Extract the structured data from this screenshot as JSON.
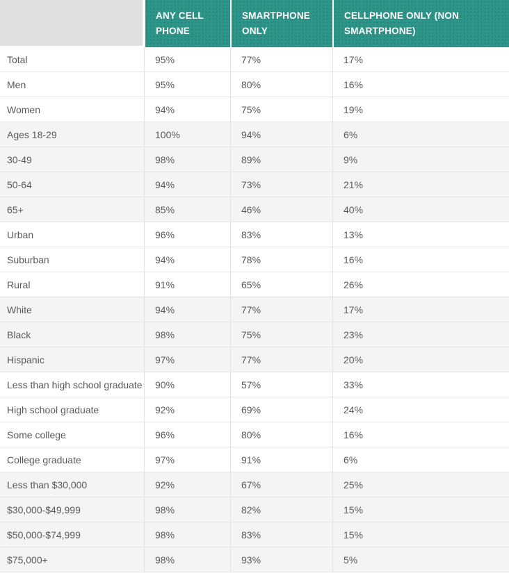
{
  "colors": {
    "header_teal": "#2E958A",
    "corner_gray": "#E0E0E0",
    "shaded_row": "#F4F4F4",
    "border": "#E2E2E2",
    "body_text": "#58595B",
    "header_text": "#FFFFFF"
  },
  "chart_data": {
    "type": "table",
    "columns": [
      "ANY CELL PHONE",
      "SMARTPHONE ONLY",
      "CELLPHONE ONLY (NON SMARTPHONE)"
    ],
    "groups": [
      {
        "shaded": false,
        "rows": [
          {
            "label": "Total",
            "values": [
              "95%",
              "77%",
              "17%"
            ]
          },
          {
            "label": "Men",
            "values": [
              "95%",
              "80%",
              "16%"
            ]
          },
          {
            "label": "Women",
            "values": [
              "94%",
              "75%",
              "19%"
            ]
          }
        ]
      },
      {
        "shaded": true,
        "rows": [
          {
            "label": "Ages 18-29",
            "values": [
              "100%",
              "94%",
              "6%"
            ]
          },
          {
            "label": "30-49",
            "values": [
              "98%",
              "89%",
              "9%"
            ]
          },
          {
            "label": "50-64",
            "values": [
              "94%",
              "73%",
              "21%"
            ]
          },
          {
            "label": "65+",
            "values": [
              "85%",
              "46%",
              "40%"
            ]
          }
        ]
      },
      {
        "shaded": false,
        "rows": [
          {
            "label": "Urban",
            "values": [
              "96%",
              "83%",
              "13%"
            ]
          },
          {
            "label": "Suburban",
            "values": [
              "94%",
              "78%",
              "16%"
            ]
          },
          {
            "label": "Rural",
            "values": [
              "91%",
              "65%",
              "26%"
            ]
          }
        ]
      },
      {
        "shaded": true,
        "rows": [
          {
            "label": "White",
            "values": [
              "94%",
              "77%",
              "17%"
            ]
          },
          {
            "label": "Black",
            "values": [
              "98%",
              "75%",
              "23%"
            ]
          },
          {
            "label": "Hispanic",
            "values": [
              "97%",
              "77%",
              "20%"
            ]
          }
        ]
      },
      {
        "shaded": false,
        "rows": [
          {
            "label": "Less than high school graduate",
            "values": [
              "90%",
              "57%",
              "33%"
            ]
          },
          {
            "label": "High school graduate",
            "values": [
              "92%",
              "69%",
              "24%"
            ]
          },
          {
            "label": "Some college",
            "values": [
              "96%",
              "80%",
              "16%"
            ]
          },
          {
            "label": "College graduate",
            "values": [
              "97%",
              "91%",
              "6%"
            ]
          }
        ]
      },
      {
        "shaded": true,
        "rows": [
          {
            "label": "Less than $30,000",
            "values": [
              "92%",
              "67%",
              "25%"
            ]
          },
          {
            "label": "$30,000-$49,999",
            "values": [
              "98%",
              "82%",
              "15%"
            ]
          },
          {
            "label": "$50,000-$74,999",
            "values": [
              "98%",
              "83%",
              "15%"
            ]
          },
          {
            "label": "$75,000+",
            "values": [
              "98%",
              "93%",
              "5%"
            ]
          }
        ]
      }
    ]
  }
}
